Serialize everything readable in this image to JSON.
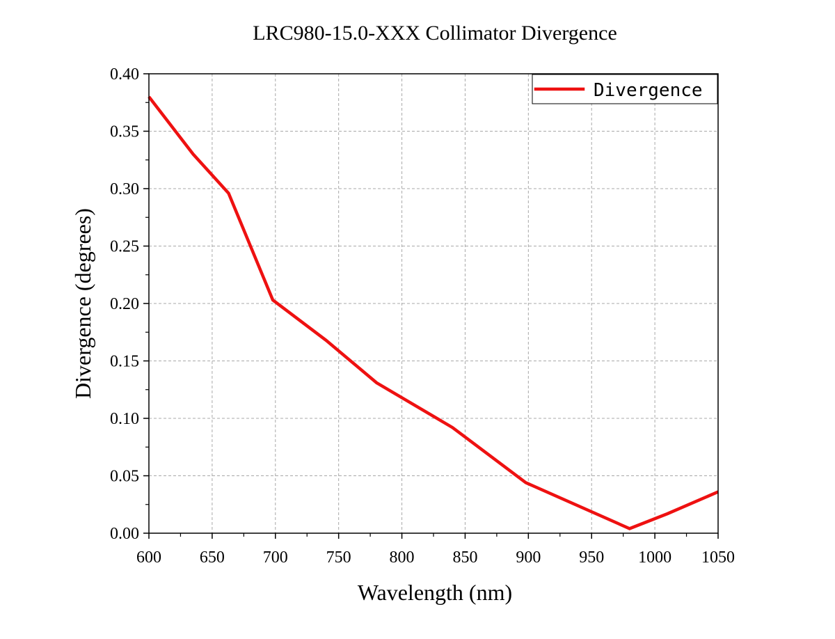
{
  "chart_data": {
    "type": "line",
    "title": "LRC980-15.0-XXX Collimator Divergence",
    "xlabel": "Wavelength (nm)",
    "ylabel": "Divergence (degrees)",
    "xlim": [
      600,
      1050
    ],
    "ylim": [
      0.0,
      0.4
    ],
    "x_ticks": [
      600,
      650,
      700,
      750,
      800,
      850,
      900,
      950,
      1000,
      1050
    ],
    "x_tick_labels": [
      "600",
      "650",
      "700",
      "750",
      "800",
      "850",
      "900",
      "950",
      "1000",
      "1050"
    ],
    "y_ticks": [
      0.0,
      0.05,
      0.1,
      0.15,
      0.2,
      0.25,
      0.3,
      0.35,
      0.4
    ],
    "y_tick_labels": [
      "0.00",
      "0.05",
      "0.10",
      "0.15",
      "0.20",
      "0.25",
      "0.30",
      "0.35",
      "0.40"
    ],
    "grid": true,
    "legend_position": "top-right",
    "series": [
      {
        "name": "Divergence",
        "color": "#ee1111",
        "x": [
          600,
          635,
          663,
          698,
          740,
          780,
          840,
          898,
          980,
          1010,
          1050
        ],
        "y": [
          0.38,
          0.33,
          0.296,
          0.203,
          0.168,
          0.131,
          0.092,
          0.044,
          0.004,
          0.017,
          0.036
        ]
      }
    ]
  }
}
